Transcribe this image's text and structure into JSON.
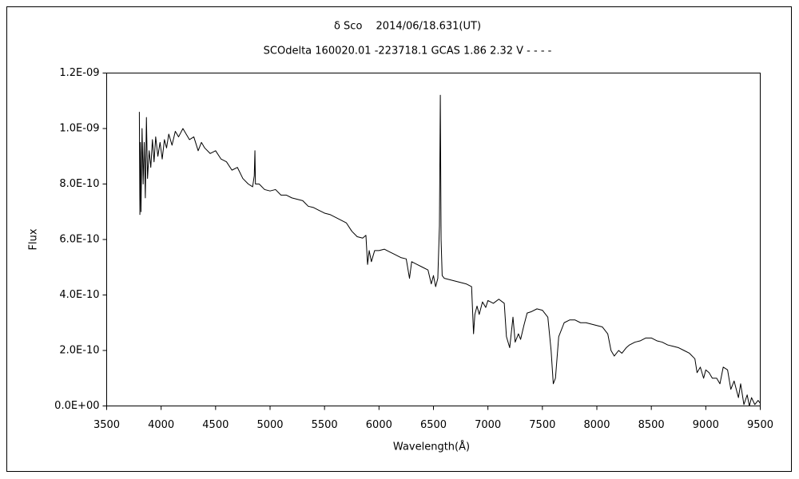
{
  "chart_data": {
    "type": "line",
    "title": "δ Sco　 2014/06/18.631(UT)",
    "subtitle": "SCOdelta 160020.01 -223718.1 GCAS 1.86 2.32 V - - - -",
    "x_label": "Wavelength(Å)",
    "y_label": "Flux",
    "xlim": [
      3500,
      9500
    ],
    "xticks": [
      3500,
      4000,
      4500,
      5000,
      5500,
      6000,
      6500,
      7000,
      7500,
      8000,
      8500,
      9000,
      9500
    ],
    "ylim": [
      0,
      1.2e-09
    ],
    "yticks": [
      {
        "value": 0,
        "label": "0.0E+00"
      },
      {
        "value": 2e-10,
        "label": "2.0E-10"
      },
      {
        "value": 4e-10,
        "label": "4.0E-10"
      },
      {
        "value": 6e-10,
        "label": "6.0E-10"
      },
      {
        "value": 8e-10,
        "label": "8.0E-10"
      },
      {
        "value": 1e-09,
        "label": "1.0E-09"
      },
      {
        "value": 1.2e-09,
        "label": "1.2E-09"
      }
    ],
    "color": "#000000",
    "x": [
      3800,
      3805,
      3810,
      3815,
      3825,
      3835,
      3845,
      3855,
      3865,
      3875,
      3890,
      3905,
      3920,
      3935,
      3950,
      3970,
      3990,
      4010,
      4030,
      4050,
      4070,
      4100,
      4130,
      4160,
      4200,
      4230,
      4260,
      4300,
      4340,
      4370,
      4400,
      4450,
      4500,
      4550,
      4600,
      4650,
      4700,
      4750,
      4800,
      4840,
      4855,
      4861,
      4866,
      4900,
      4950,
      5000,
      5050,
      5100,
      5150,
      5200,
      5250,
      5300,
      5350,
      5400,
      5450,
      5500,
      5550,
      5600,
      5650,
      5700,
      5750,
      5800,
      5850,
      5880,
      5895,
      5910,
      5930,
      5960,
      6000,
      6050,
      6100,
      6150,
      6200,
      6250,
      6280,
      6300,
      6350,
      6400,
      6450,
      6480,
      6500,
      6520,
      6540,
      6555,
      6563,
      6570,
      6580,
      6600,
      6650,
      6700,
      6750,
      6800,
      6850,
      6868,
      6880,
      6900,
      6920,
      6950,
      6980,
      7000,
      7050,
      7100,
      7150,
      7170,
      7200,
      7230,
      7250,
      7280,
      7300,
      7330,
      7360,
      7400,
      7450,
      7500,
      7550,
      7580,
      7600,
      7620,
      7650,
      7700,
      7750,
      7800,
      7850,
      7900,
      7950,
      8000,
      8050,
      8100,
      8130,
      8160,
      8200,
      8230,
      8270,
      8300,
      8350,
      8400,
      8450,
      8500,
      8550,
      8600,
      8650,
      8700,
      8750,
      8800,
      8850,
      8900,
      8920,
      8950,
      8980,
      9000,
      9030,
      9060,
      9100,
      9130,
      9160,
      9200,
      9230,
      9260,
      9300,
      9320,
      9350,
      9380,
      9400,
      9420,
      9450,
      9480,
      9500
    ],
    "values": [
      1.06e-09,
      6.9e-10,
      9.5e-10,
      7e-10,
      1e-09,
      8e-10,
      9.5e-10,
      7.5e-10,
      1.04e-09,
      8.2e-10,
      9.2e-10,
      8.6e-10,
      9.6e-10,
      8.8e-10,
      9.7e-10,
      9e-10,
      9.5e-10,
      8.9e-10,
      9.6e-10,
      9.3e-10,
      9.8e-10,
      9.4e-10,
      9.9e-10,
      9.7e-10,
      1e-09,
      9.8e-10,
      9.6e-10,
      9.7e-10,
      9.2e-10,
      9.5e-10,
      9.3e-10,
      9.1e-10,
      9.2e-10,
      8.9e-10,
      8.8e-10,
      8.5e-10,
      8.6e-10,
      8.2e-10,
      8e-10,
      7.9e-10,
      8.3e-10,
      9.2e-10,
      8e-10,
      8e-10,
      7.8e-10,
      7.75e-10,
      7.8e-10,
      7.6e-10,
      7.6e-10,
      7.5e-10,
      7.45e-10,
      7.4e-10,
      7.2e-10,
      7.15e-10,
      7.05e-10,
      6.95e-10,
      6.9e-10,
      6.8e-10,
      6.7e-10,
      6.6e-10,
      6.3e-10,
      6.1e-10,
      6.05e-10,
      6.15e-10,
      5.1e-10,
      5.6e-10,
      5.2e-10,
      5.6e-10,
      5.6e-10,
      5.65e-10,
      5.55e-10,
      5.45e-10,
      5.35e-10,
      5.3e-10,
      4.6e-10,
      5.2e-10,
      5.1e-10,
      5e-10,
      4.9e-10,
      4.4e-10,
      4.7e-10,
      4.3e-10,
      4.6e-10,
      6.5e-10,
      1.12e-09,
      6e-10,
      4.7e-10,
      4.6e-10,
      4.55e-10,
      4.5e-10,
      4.45e-10,
      4.4e-10,
      4.3e-10,
      2.6e-10,
      3.3e-10,
      3.6e-10,
      3.3e-10,
      3.75e-10,
      3.55e-10,
      3.8e-10,
      3.7e-10,
      3.85e-10,
      3.7e-10,
      2.5e-10,
      2.1e-10,
      3.2e-10,
      2.3e-10,
      2.6e-10,
      2.4e-10,
      2.9e-10,
      3.35e-10,
      3.4e-10,
      3.5e-10,
      3.45e-10,
      3.2e-10,
      2e-10,
      8e-11,
      1e-10,
      2.5e-10,
      3e-10,
      3.1e-10,
      3.1e-10,
      3e-10,
      3e-10,
      2.95e-10,
      2.9e-10,
      2.85e-10,
      2.6e-10,
      2e-10,
      1.8e-10,
      2e-10,
      1.9e-10,
      2.1e-10,
      2.2e-10,
      2.3e-10,
      2.35e-10,
      2.45e-10,
      2.45e-10,
      2.35e-10,
      2.3e-10,
      2.2e-10,
      2.15e-10,
      2.1e-10,
      2e-10,
      1.9e-10,
      1.7e-10,
      1.2e-10,
      1.4e-10,
      1e-10,
      1.3e-10,
      1.2e-10,
      1e-10,
      1e-10,
      8e-11,
      1.4e-10,
      1.3e-10,
      6e-11,
      9e-11,
      3e-11,
      8e-11,
      5e-12,
      4e-11,
      0,
      3e-11,
      5e-12,
      2e-11,
      1e-11
    ]
  }
}
